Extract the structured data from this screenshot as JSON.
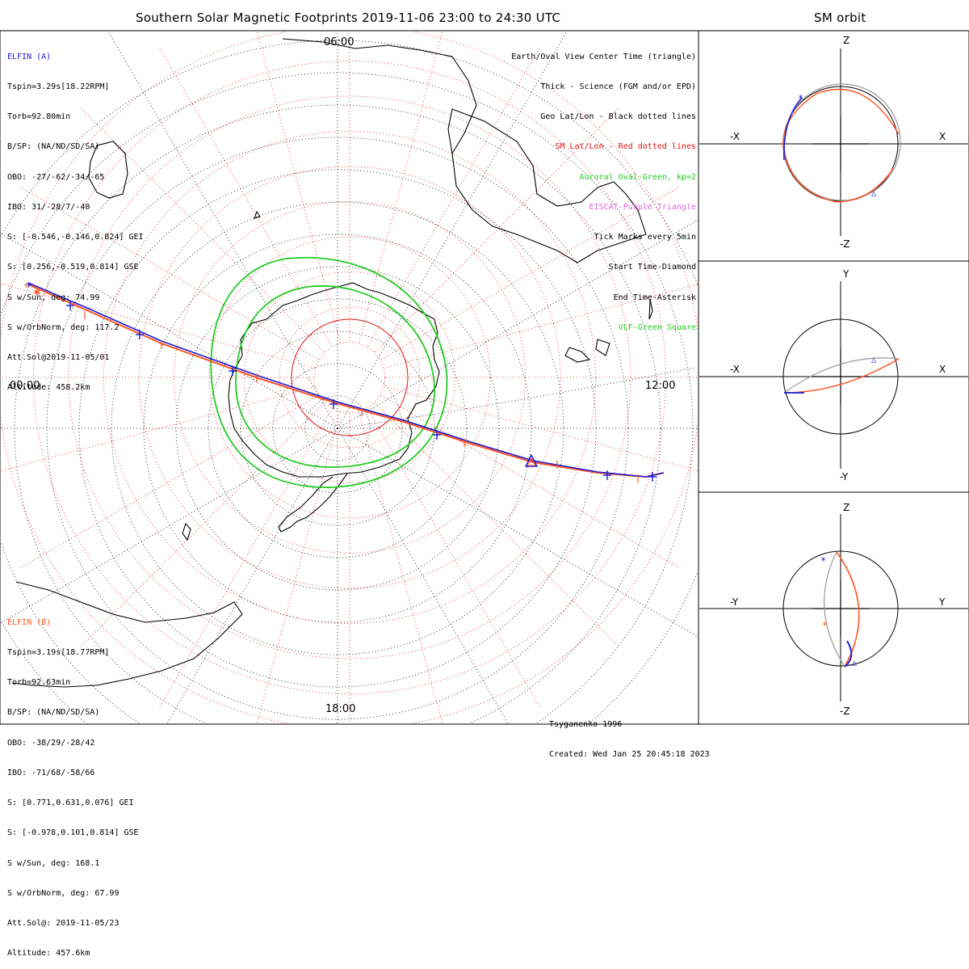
{
  "main_title": "Southern Solar Magnetic Footprints 2019-11-06 23:00 to 24:30 UTC",
  "side_title": "SM orbit",
  "colors": {
    "sat_a": "#1a1ad6",
    "sat_b": "#ff5522",
    "sm_grid": "#e01010",
    "oval": "#22cc22",
    "eiscat": "#dd66dd",
    "geo_grid": "#000000",
    "orbit_gray": "#999999"
  },
  "sat_a": {
    "name": "ELFIN (A)",
    "lines": [
      "Tspin=3.29s[18.22RPM]",
      "Torb=92.80min",
      "B/SP: (NA/ND/SD/SA)",
      "OBO: -27/-62/-34/-65",
      "IBO: 31/-28/7/-40",
      "S: [-0.546,-0.146,0.824] GEI",
      "S: [0.256,-0.519,0.814] GSE",
      "S w/Sun, deg: 74.99",
      "S w/OrbNorm, deg: 117.2",
      "Att.Sol@2019-11-05/01",
      "Altitude: 458.2km"
    ]
  },
  "sat_b": {
    "name": "ELFIN (B)",
    "lines": [
      "Tspin=3.19s[18.77RPM]",
      "Torb=92.63min",
      "B/SP: (NA/ND/SD/SA)",
      "OBO: -38/29/-28/42",
      "IBO: -71/68/-58/66",
      "S: [0.771,0.631,0.076] GEI",
      "S: [-0.978,0.101,0.814] GSE",
      "S w/Sun, deg: 168.1",
      "S w/OrbNorm, deg: 67.99",
      "Att.Sol@: 2019-11-05/23",
      "Altitude: 457.6km"
    ]
  },
  "legend": [
    {
      "text": "Earth/Oval View Center Time (triangle)",
      "color": "#000000"
    },
    {
      "text": "Thick - Science (FGM and/or EPD)",
      "color": "#000000"
    },
    {
      "text": "Geo Lat/Lon - Black dotted lines",
      "color": "#000000"
    },
    {
      "text": "SM Lat/Lon - Red dotted lines",
      "color": "#e01010"
    },
    {
      "text": "Auroral Oval-Green, kp=2",
      "color": "#22cc22"
    },
    {
      "text": "EISCAT-Purple Triangle",
      "color": "#dd66dd"
    },
    {
      "text": "Tick Marks every 5min",
      "color": "#000000"
    },
    {
      "text": "Start Time-Diamond",
      "color": "#000000"
    },
    {
      "text": "End Time-Asterisk",
      "color": "#000000"
    },
    {
      "text": "VLF-Green Square",
      "color": "#22cc22"
    }
  ],
  "hour_labels": {
    "top": "06:00",
    "left": "00:00",
    "right": "12:00",
    "bottom": "18:00"
  },
  "credit": [
    "Tsyganenko-1996",
    "Created: Wed Jan 25 20:45:18 2023"
  ],
  "orbit_panels": [
    {
      "up": "Z",
      "down": "-Z",
      "left": "-X",
      "right": "X"
    },
    {
      "up": "Y",
      "down": "-Y",
      "left": "-X",
      "right": "X"
    },
    {
      "up": "Z",
      "down": "-Z",
      "left": "-Y",
      "right": "Y"
    }
  ],
  "chart_data": {
    "type": "polar_map",
    "title": "Southern Solar Magnetic Footprints 2019-11-06 23:00 to 24:30 UTC",
    "projection": "south-polar SM coordinates",
    "mlt_labels": [
      "00:00",
      "06:00",
      "12:00",
      "18:00"
    ],
    "series": [
      {
        "name": "ELFIN (A)",
        "color": "#1a1ad6"
      },
      {
        "name": "ELFIN (B)",
        "color": "#ff5522"
      }
    ],
    "auroral_oval_kp": 2
  }
}
